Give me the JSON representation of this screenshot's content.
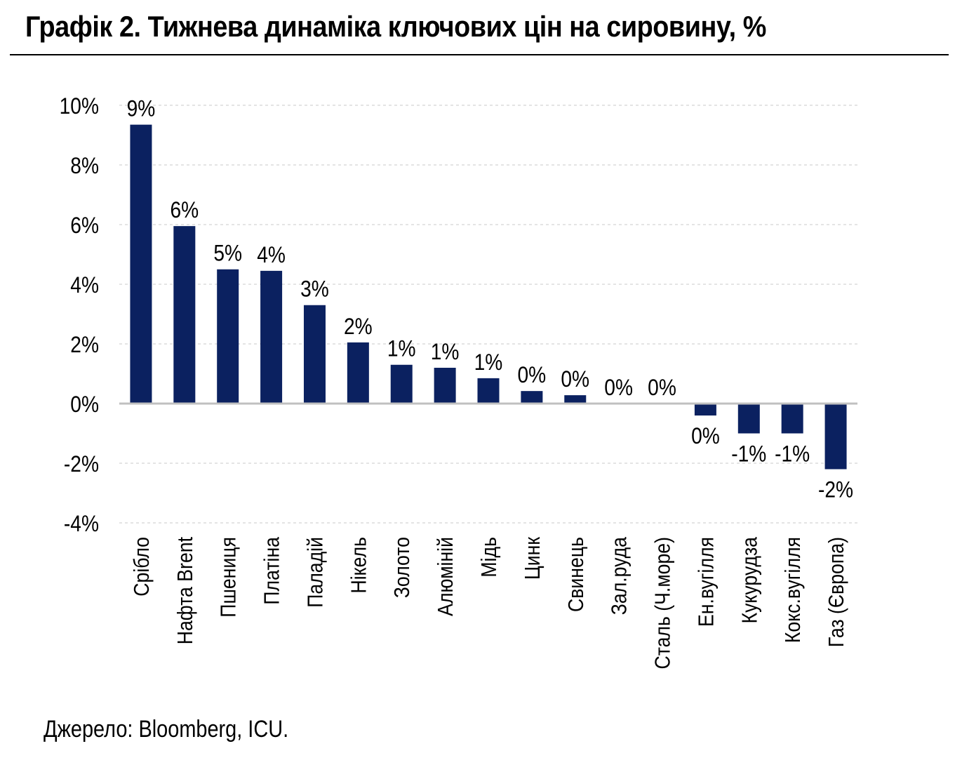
{
  "chart_data": {
    "type": "bar",
    "title": "Графік 2. Тижнева динаміка ключових цін на сировину, %",
    "source": "Джерело: Bloomberg, ICU.",
    "categories": [
      "Срібло",
      "Нафта Brent",
      "Пшениця",
      "Платіна",
      "Паладій",
      "Нікель",
      "Золото",
      "Алюміній",
      "Мідь",
      "Цинк",
      "Свинець",
      "Зал.руда",
      "Сталь (Ч.море)",
      "Ен.вугілля",
      "Кукурудза",
      "Кокс.вугілля",
      "Газ (Європа)"
    ],
    "values": [
      9.35,
      5.95,
      4.5,
      4.45,
      3.3,
      2.05,
      1.3,
      1.2,
      0.85,
      0.42,
      0.28,
      0.0,
      0.0,
      -0.4,
      -1.0,
      -1.0,
      -2.2
    ],
    "data_labels": [
      "9%",
      "6%",
      "5%",
      "4%",
      "3%",
      "2%",
      "1%",
      "1%",
      "1%",
      "0%",
      "0%",
      "0%",
      "0%",
      "0%",
      "-1%",
      "-1%",
      "-2%"
    ],
    "yticks": [
      10,
      8,
      6,
      4,
      2,
      0,
      -2,
      -4
    ],
    "ytick_labels": [
      "10%",
      "8%",
      "6%",
      "4%",
      "2%",
      "0%",
      "-2%",
      "-4%"
    ],
    "ylim": [
      -4,
      10
    ],
    "xlabel": "",
    "ylabel": "",
    "grid": "horizontal dashed",
    "legend": "none",
    "colors": {
      "bar": "#0b2160",
      "gridline": "#c8c8c8",
      "zero_line": "#c0c0c0"
    }
  }
}
